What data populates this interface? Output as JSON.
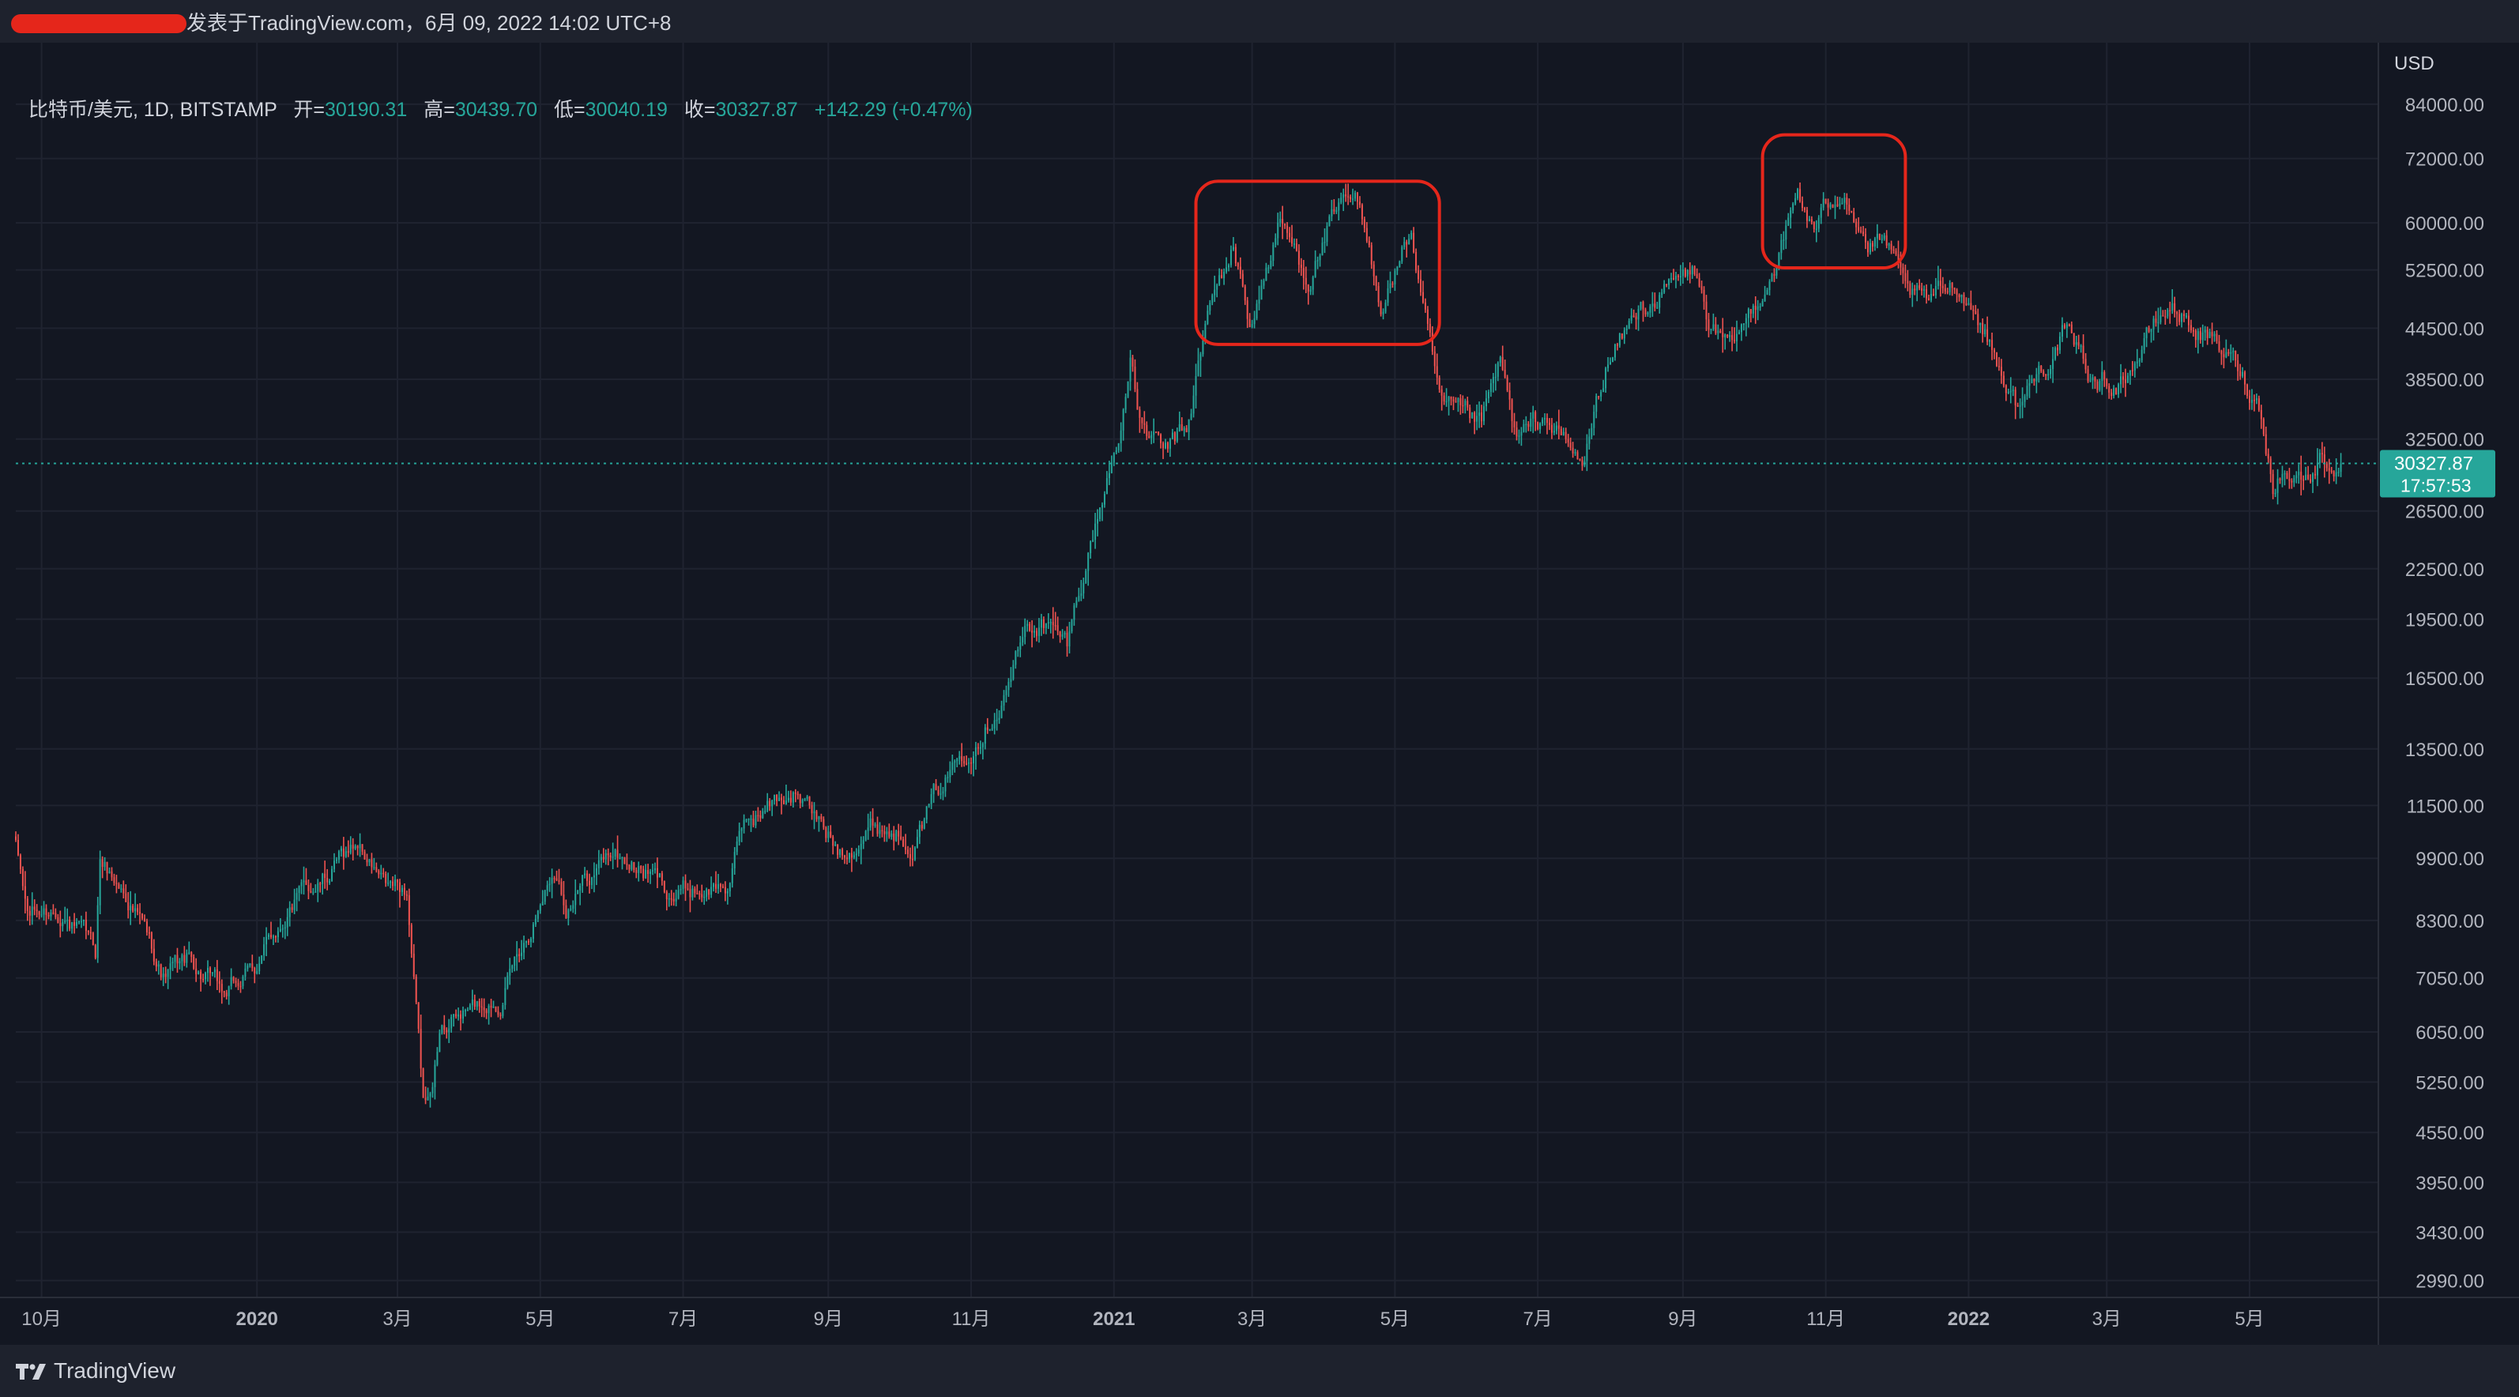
{
  "header": {
    "published_text": "发表于TradingView.com，6月 09, 2022 14:02 UTC+8"
  },
  "legend": {
    "symbol": "比特币/美元, 1D, BITSTAMP",
    "open_label": "开=",
    "open": "30190.31",
    "high_label": "高=",
    "high": "30439.70",
    "low_label": "低=",
    "low": "30040.19",
    "close_label": "收=",
    "close": "30327.87",
    "change": "+142.29 (+0.47%)"
  },
  "footer": {
    "brand": "TradingView"
  },
  "chart_data": {
    "type": "candlestick",
    "currency_label": "USD",
    "y_scale": "log",
    "y_ticks": [
      84000,
      72000,
      60000,
      52500,
      44500,
      38500,
      32500,
      26500,
      22500,
      19500,
      16500,
      13500,
      11500,
      9900,
      8300,
      7050,
      6050,
      5250,
      4550,
      3950,
      3430,
      2990
    ],
    "y_tick_labels": [
      "84000.00",
      "72000.00",
      "60000.00",
      "52500.00",
      "44500.00",
      "38500.00",
      "32500.00",
      "26500.00",
      "22500.00",
      "19500.00",
      "16500.00",
      "13500.00",
      "11500.00",
      "9900.00",
      "8300.00",
      "7050.00",
      "6050.00",
      "5250.00",
      "4550.00",
      "3950.00",
      "3430.00",
      "2990.00"
    ],
    "x_ticks": [
      {
        "label": "10月",
        "date": "2019-10-01",
        "bold": false
      },
      {
        "label": "2020",
        "date": "2020-01-01",
        "bold": true
      },
      {
        "label": "3月",
        "date": "2020-03-01",
        "bold": false
      },
      {
        "label": "5月",
        "date": "2020-05-01",
        "bold": false
      },
      {
        "label": "7月",
        "date": "2020-07-01",
        "bold": false
      },
      {
        "label": "9月",
        "date": "2020-09-01",
        "bold": false
      },
      {
        "label": "11月",
        "date": "2020-11-01",
        "bold": false
      },
      {
        "label": "2021",
        "date": "2021-01-01",
        "bold": true
      },
      {
        "label": "3月",
        "date": "2021-03-01",
        "bold": false
      },
      {
        "label": "5月",
        "date": "2021-05-01",
        "bold": false
      },
      {
        "label": "7月",
        "date": "2021-07-01",
        "bold": false
      },
      {
        "label": "9月",
        "date": "2021-09-01",
        "bold": false
      },
      {
        "label": "11月",
        "date": "2021-11-01",
        "bold": false
      },
      {
        "label": "2022",
        "date": "2022-01-01",
        "bold": true
      },
      {
        "label": "3月",
        "date": "2022-03-01",
        "bold": false
      },
      {
        "label": "5月",
        "date": "2022-05-01",
        "bold": false
      }
    ],
    "x_range": [
      "2019-09-20",
      "2022-06-25"
    ],
    "y_range": [
      2850,
      100000
    ],
    "last_price": {
      "value": 30327.87,
      "label": "30327.87",
      "countdown": "17:57:53",
      "color": "#26a69a"
    },
    "up_color": "#26a69a",
    "down_color": "#ef5350",
    "annotation_color": "#e5261b",
    "annotations": [
      {
        "type": "rounded-rect",
        "from": "2021-02-05",
        "to": "2021-05-20",
        "y_low": 42500,
        "y_high": 67500
      },
      {
        "type": "rounded-rect",
        "from": "2021-10-05",
        "to": "2021-12-05",
        "y_low": 52800,
        "y_high": 77000
      }
    ],
    "price_path": [
      [
        "2019-09-20",
        10200
      ],
      [
        "2019-09-25",
        8400
      ],
      [
        "2019-10-10",
        8600
      ],
      [
        "2019-10-24",
        7450
      ],
      [
        "2019-10-26",
        9800
      ],
      [
        "2019-11-08",
        8800
      ],
      [
        "2019-11-22",
        7100
      ],
      [
        "2019-12-03",
        7400
      ],
      [
        "2019-12-18",
        6650
      ],
      [
        "2019-12-31",
        7200
      ],
      [
        "2020-01-15",
        8700
      ],
      [
        "2020-02-01",
        9400
      ],
      [
        "2020-02-13",
        10350
      ],
      [
        "2020-02-25",
        9000
      ],
      [
        "2020-03-05",
        9000
      ],
      [
        "2020-03-12",
        4900
      ],
      [
        "2020-03-13",
        4800
      ],
      [
        "2020-03-20",
        6200
      ],
      [
        "2020-04-01",
        6400
      ],
      [
        "2020-04-15",
        6800
      ],
      [
        "2020-05-07",
        9800
      ],
      [
        "2020-05-12",
        8800
      ],
      [
        "2020-06-01",
        10100
      ],
      [
        "2020-06-27",
        9000
      ],
      [
        "2020-07-20",
        9200
      ],
      [
        "2020-07-28",
        11000
      ],
      [
        "2020-08-17",
        12000
      ],
      [
        "2020-09-05",
        10200
      ],
      [
        "2020-09-20",
        10900
      ],
      [
        "2020-10-08",
        10600
      ],
      [
        "2020-10-25",
        13000
      ],
      [
        "2020-11-15",
        16000
      ],
      [
        "2020-11-25",
        19000
      ],
      [
        "2020-12-01",
        19400
      ],
      [
        "2020-12-12",
        18000
      ],
      [
        "2020-12-20",
        23000
      ],
      [
        "2021-01-02",
        32000
      ],
      [
        "2021-01-08",
        40500
      ],
      [
        "2021-01-12",
        34000
      ],
      [
        "2021-01-22",
        31000
      ],
      [
        "2021-02-01",
        33000
      ],
      [
        "2021-02-10",
        46000
      ],
      [
        "2021-02-21",
        56000
      ],
      [
        "2021-02-28",
        45000
      ],
      [
        "2021-03-13",
        60000
      ],
      [
        "2021-03-25",
        51500
      ],
      [
        "2021-04-02",
        59000
      ],
      [
        "2021-04-14",
        63500
      ],
      [
        "2021-04-25",
        48000
      ],
      [
        "2021-05-08",
        58500
      ],
      [
        "2021-05-12",
        49000
      ],
      [
        "2021-05-19",
        37000
      ],
      [
        "2021-05-22",
        34500
      ],
      [
        "2021-06-07",
        33500
      ],
      [
        "2021-06-15",
        40000
      ],
      [
        "2021-06-22",
        32000
      ],
      [
        "2021-07-05",
        34500
      ],
      [
        "2021-07-20",
        29800
      ],
      [
        "2021-07-30",
        40000
      ],
      [
        "2021-08-14",
        47000
      ],
      [
        "2021-08-22",
        49000
      ],
      [
        "2021-09-06",
        52000
      ],
      [
        "2021-09-12",
        45000
      ],
      [
        "2021-09-21",
        41000
      ],
      [
        "2021-10-01",
        47000
      ],
      [
        "2021-10-14",
        57000
      ],
      [
        "2021-10-20",
        65000
      ],
      [
        "2021-10-27",
        58500
      ],
      [
        "2021-11-09",
        67500
      ],
      [
        "2021-11-19",
        56500
      ],
      [
        "2021-11-27",
        56000
      ],
      [
        "2021-12-04",
        49000
      ],
      [
        "2021-12-14",
        47000
      ],
      [
        "2021-12-27",
        51000
      ],
      [
        "2022-01-05",
        46500
      ],
      [
        "2022-01-22",
        35500
      ],
      [
        "2022-02-10",
        44000
      ],
      [
        "2022-02-24",
        38000
      ],
      [
        "2022-03-07",
        38500
      ],
      [
        "2022-03-28",
        47500
      ],
      [
        "2022-04-05",
        45500
      ],
      [
        "2022-04-25",
        40000
      ],
      [
        "2022-05-05",
        36000
      ],
      [
        "2022-05-11",
        29000
      ],
      [
        "2022-05-14",
        30000
      ],
      [
        "2022-05-26",
        29000
      ],
      [
        "2022-06-01",
        31000
      ],
      [
        "2022-06-09",
        30327.87
      ]
    ]
  }
}
